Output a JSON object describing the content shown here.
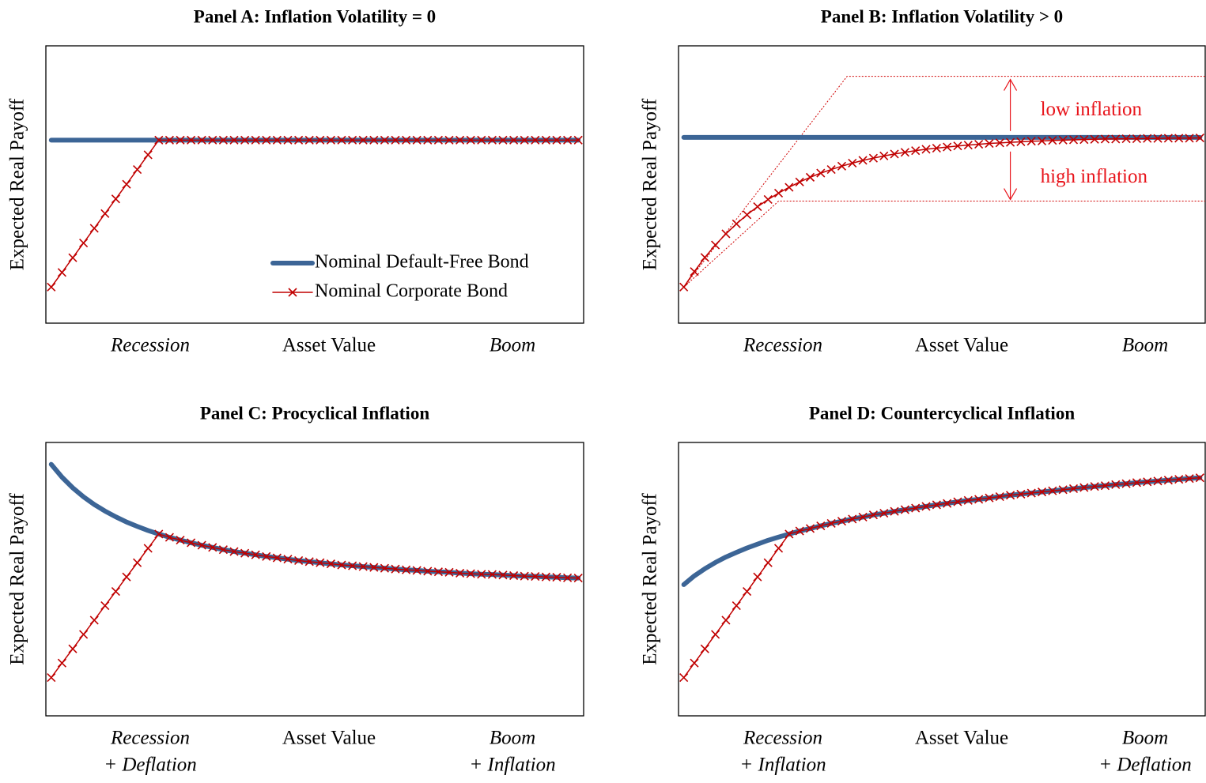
{
  "chart_data": [
    {
      "type": "line",
      "title": "Panel A: Inflation Volatility = 0",
      "ylabel": "Expected Real Payoff",
      "xlabel": "Asset Value",
      "left_label": [
        "Recession"
      ],
      "right_label": [
        "Boom"
      ],
      "xlim": [
        0,
        100
      ],
      "ylim": [
        0,
        100
      ],
      "legend": "lower right",
      "x": [
        1,
        3,
        5,
        7,
        9,
        11,
        13,
        15,
        17,
        19,
        21,
        23,
        25,
        27,
        29,
        31,
        33,
        35,
        37,
        39,
        41,
        43,
        45,
        47,
        49,
        51,
        53,
        55,
        57,
        59,
        61,
        63,
        65,
        67,
        69,
        71,
        73,
        75,
        77,
        79,
        81,
        83,
        85,
        87,
        89,
        91,
        93,
        95,
        97,
        99
      ],
      "series": [
        {
          "name": "Nominal Default-Free Bond",
          "color": "#3c6596",
          "marker": "none",
          "values": [
            66,
            66,
            66,
            66,
            66,
            66,
            66,
            66,
            66,
            66,
            66,
            66,
            66,
            66,
            66,
            66,
            66,
            66,
            66,
            66,
            66,
            66,
            66,
            66,
            66,
            66,
            66,
            66,
            66,
            66,
            66,
            66,
            66,
            66,
            66,
            66,
            66,
            66,
            66,
            66,
            66,
            66,
            66,
            66,
            66,
            66,
            66,
            66,
            66,
            66
          ]
        },
        {
          "name": "Nominal Corporate Bond",
          "color": "#c00000",
          "marker": "x",
          "values": [
            13,
            18.3,
            23.6,
            28.9,
            34.2,
            39.5,
            44.8,
            50.1,
            55.4,
            60.7,
            66,
            66,
            66,
            66,
            66,
            66,
            66,
            66,
            66,
            66,
            66,
            66,
            66,
            66,
            66,
            66,
            66,
            66,
            66,
            66,
            66,
            66,
            66,
            66,
            66,
            66,
            66,
            66,
            66,
            66,
            66,
            66,
            66,
            66,
            66,
            66,
            66,
            66,
            66,
            66
          ]
        }
      ]
    },
    {
      "type": "line",
      "title": "Panel B: Inflation Volatility > 0",
      "ylabel": "Expected Real Payoff",
      "xlabel": "Asset Value",
      "left_label": [
        "Recession"
      ],
      "right_label": [
        "Boom"
      ],
      "xlim": [
        0,
        100
      ],
      "ylim": [
        0,
        100
      ],
      "x": [
        1,
        3,
        5,
        7,
        9,
        11,
        13,
        15,
        17,
        19,
        21,
        23,
        25,
        27,
        29,
        31,
        33,
        35,
        37,
        39,
        41,
        43,
        45,
        47,
        49,
        51,
        53,
        55,
        57,
        59,
        61,
        63,
        65,
        67,
        69,
        71,
        73,
        75,
        77,
        79,
        81,
        83,
        85,
        87,
        89,
        91,
        93,
        95,
        97,
        99
      ],
      "series": [
        {
          "name": "Nominal Default-Free Bond",
          "color": "#3c6596",
          "marker": "none",
          "values": [
            67,
            67,
            67,
            67,
            67,
            67,
            67,
            67,
            67,
            67,
            67,
            67,
            67,
            67,
            67,
            67,
            67,
            67,
            67,
            67,
            67,
            67,
            67,
            67,
            67,
            67,
            67,
            67,
            67,
            67,
            67,
            67,
            67,
            67,
            67,
            67,
            67,
            67,
            67,
            67,
            67,
            67,
            67,
            67,
            67,
            67,
            67,
            67,
            67,
            67
          ]
        },
        {
          "name": "Nominal Corporate Bond",
          "color": "#c00000",
          "marker": "x",
          "values": [
            13,
            18.6,
            23.7,
            28.2,
            32.2,
            35.8,
            39.1,
            42,
            44.6,
            46.9,
            49,
            50.9,
            52.6,
            54.1,
            55.4,
            56.6,
            57.7,
            58.7,
            59.5,
            60.3,
            61,
            61.6,
            62.2,
            62.7,
            63.1,
            63.5,
            63.9,
            64.2,
            64.5,
            64.8,
            65,
            65.2,
            65.4,
            65.6,
            65.7,
            65.9,
            66,
            66.1,
            66.2,
            66.3,
            66.4,
            66.4,
            66.5,
            66.5,
            66.6,
            66.6,
            66.7,
            66.7,
            66.7,
            66.8
          ]
        }
      ],
      "bounds": [
        {
          "x": [
            1,
            32,
            100
          ],
          "values": [
            13,
            89,
            89
          ]
        },
        {
          "x": [
            1,
            19,
            100
          ],
          "values": [
            13,
            44,
            44
          ]
        }
      ],
      "bounds_color": "#d00000",
      "annotations": [
        "low inflation",
        "high inflation"
      ],
      "annotation_color": "#e8141b"
    },
    {
      "type": "line",
      "title": "Panel C: Procyclical Inflation",
      "ylabel": "Expected Real Payoff",
      "xlabel": "Asset Value",
      "left_label": [
        "Recession",
        "+ Deflation"
      ],
      "right_label": [
        "Boom",
        "+ Inflation"
      ],
      "xlim": [
        0,
        100
      ],
      "ylim": [
        0,
        100
      ],
      "x": [
        1,
        3,
        5,
        7,
        9,
        11,
        13,
        15,
        17,
        19,
        21,
        23,
        25,
        27,
        29,
        31,
        33,
        35,
        37,
        39,
        41,
        43,
        45,
        47,
        49,
        51,
        53,
        55,
        57,
        59,
        61,
        63,
        65,
        67,
        69,
        71,
        73,
        75,
        77,
        79,
        81,
        83,
        85,
        87,
        89,
        91,
        93,
        95,
        97,
        99
      ],
      "series": [
        {
          "name": "Nominal Default-Free Bond",
          "color": "#3c6596",
          "marker": "none",
          "values": [
            92,
            87.3,
            83.4,
            80.1,
            77.3,
            74.9,
            72.8,
            70.9,
            69.3,
            67.8,
            66.5,
            65.3,
            64.3,
            63.3,
            62.4,
            61.6,
            60.8,
            60.1,
            59.5,
            58.9,
            58.3,
            57.8,
            57.3,
            56.8,
            56.4,
            56,
            55.6,
            55.2,
            54.9,
            54.6,
            54.3,
            54,
            53.7,
            53.4,
            53.2,
            52.9,
            52.7,
            52.5,
            52.2,
            52,
            51.8,
            51.7,
            51.5,
            51.3,
            51.1,
            51,
            50.8,
            50.7,
            50.5,
            50.4
          ]
        },
        {
          "name": "Nominal Corporate Bond",
          "color": "#c00000",
          "marker": "x",
          "values": [
            14,
            19.3,
            24.5,
            29.8,
            35,
            40.3,
            45.5,
            50.8,
            56,
            61.3,
            66.5,
            65.3,
            64.3,
            63.3,
            62.4,
            61.6,
            60.8,
            60.1,
            59.5,
            58.9,
            58.3,
            57.8,
            57.3,
            56.8,
            56.4,
            56,
            55.6,
            55.2,
            54.9,
            54.6,
            54.3,
            54,
            53.7,
            53.4,
            53.2,
            52.9,
            52.7,
            52.5,
            52.2,
            52,
            51.8,
            51.7,
            51.5,
            51.3,
            51.1,
            51,
            50.8,
            50.7,
            50.5,
            50.4
          ]
        }
      ]
    },
    {
      "type": "line",
      "title": "Panel D: Countercyclical Inflation",
      "ylabel": "Expected Real Payoff",
      "xlabel": "Asset Value",
      "left_label": [
        "Recession",
        "+ Inflation"
      ],
      "right_label": [
        "Boom",
        "+ Deflation"
      ],
      "xlim": [
        0,
        100
      ],
      "ylim": [
        0,
        100
      ],
      "x": [
        1,
        3,
        5,
        7,
        9,
        11,
        13,
        15,
        17,
        19,
        21,
        23,
        25,
        27,
        29,
        31,
        33,
        35,
        37,
        39,
        41,
        43,
        45,
        47,
        49,
        51,
        53,
        55,
        57,
        59,
        61,
        63,
        65,
        67,
        69,
        71,
        73,
        75,
        77,
        79,
        81,
        83,
        85,
        87,
        89,
        91,
        93,
        95,
        97,
        99
      ],
      "series": [
        {
          "name": "Nominal Default-Free Bond",
          "color": "#3c6596",
          "marker": "none",
          "values": [
            48,
            51.2,
            53.8,
            56.1,
            58.1,
            59.8,
            61.4,
            62.8,
            64.2,
            65.4,
            66.5,
            67.6,
            68.5,
            69.5,
            70.4,
            71.2,
            72,
            72.7,
            73.5,
            74.1,
            74.8,
            75.4,
            76,
            76.6,
            77.2,
            77.7,
            78.3,
            78.8,
            79.2,
            79.7,
            80.2,
            80.7,
            81.1,
            81.5,
            81.9,
            82.3,
            82.7,
            83.1,
            83.5,
            83.9,
            84.2,
            84.6,
            84.9,
            85.3,
            85.6,
            85.9,
            86.2,
            86.5,
            86.8,
            87.1
          ]
        },
        {
          "name": "Nominal Corporate Bond",
          "color": "#c00000",
          "marker": "x",
          "values": [
            14,
            19.3,
            24.5,
            29.8,
            35,
            40.3,
            45.5,
            50.8,
            56,
            61.3,
            66.5,
            67.6,
            68.5,
            69.5,
            70.4,
            71.2,
            72,
            72.7,
            73.5,
            74.1,
            74.8,
            75.4,
            76,
            76.6,
            77.2,
            77.7,
            78.3,
            78.8,
            79.2,
            79.7,
            80.2,
            80.7,
            81.1,
            81.5,
            81.9,
            82.3,
            82.7,
            83.1,
            83.5,
            83.9,
            84.2,
            84.6,
            84.9,
            85.3,
            85.6,
            85.9,
            86.2,
            86.5,
            86.8,
            87.1
          ]
        }
      ]
    }
  ]
}
